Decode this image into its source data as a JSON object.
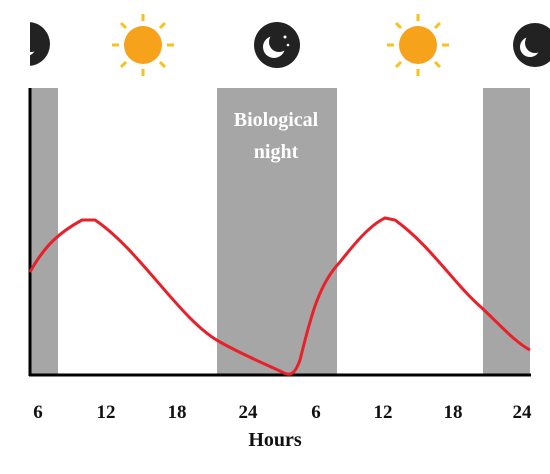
{
  "annotation": {
    "lines": [
      "Biological",
      "night"
    ]
  },
  "x_axis": {
    "ticks": [
      "6",
      "12",
      "18",
      "24",
      "6",
      "12",
      "18",
      "24"
    ],
    "title": "Hours"
  }
}
